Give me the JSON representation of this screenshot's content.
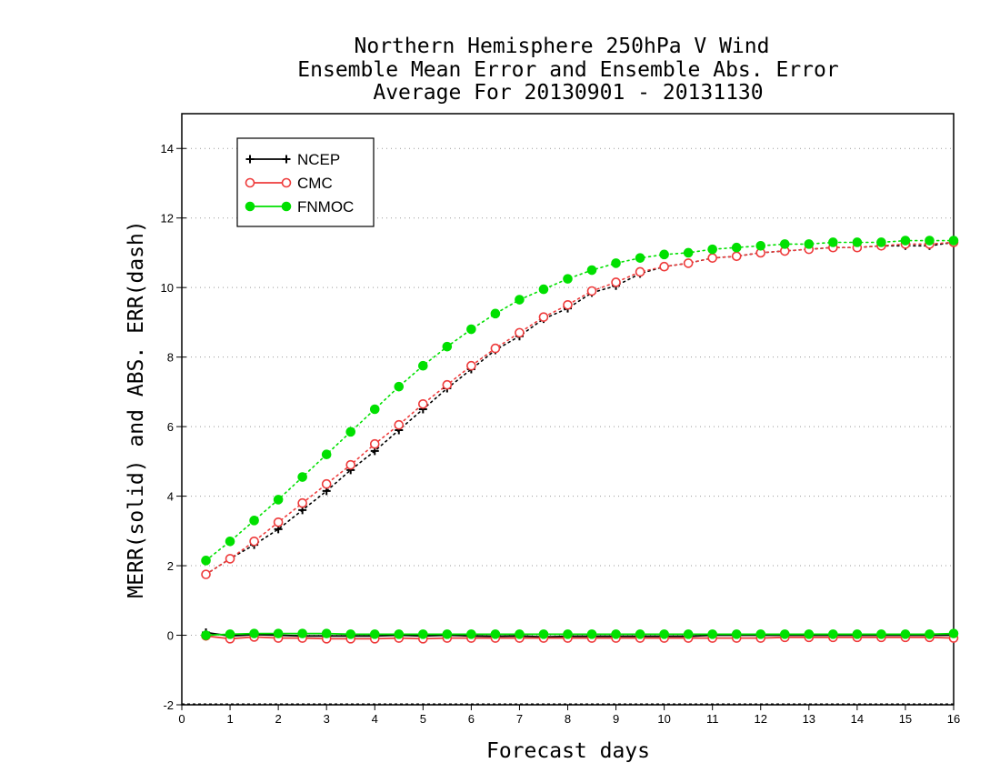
{
  "chart_data": {
    "type": "line",
    "title_lines": [
      "Northern Hemisphere 250hPa V Wind",
      "Ensemble Mean Error and Ensemble Abs. Error",
      "Average For 20130901 - 20131130"
    ],
    "xlabel": "Forecast days",
    "ylabel": "MERR(solid) and ABS. ERR(dash)",
    "xlim": [
      0,
      16
    ],
    "ylim": [
      -2,
      15
    ],
    "xticks": [
      0,
      1,
      2,
      3,
      4,
      5,
      6,
      7,
      8,
      9,
      10,
      11,
      12,
      13,
      14,
      15,
      16
    ],
    "yticks": [
      -2,
      0,
      2,
      4,
      6,
      8,
      10,
      12,
      14
    ],
    "grid": "horizontal-dotted",
    "legend_position": "top-left",
    "x": [
      0.5,
      1,
      1.5,
      2,
      2.5,
      3,
      3.5,
      4,
      4.5,
      5,
      5.5,
      6,
      6.5,
      7,
      7.5,
      8,
      8.5,
      9,
      9.5,
      10,
      10.5,
      11,
      11.5,
      12,
      12.5,
      13,
      13.5,
      14,
      14.5,
      15,
      15.5,
      16
    ],
    "series": [
      {
        "name": "NCEP",
        "color": "#000000",
        "marker": "plus",
        "abs_err": [
          1.75,
          2.2,
          2.6,
          3.05,
          3.6,
          4.15,
          4.75,
          5.3,
          5.9,
          6.5,
          7.1,
          7.65,
          8.2,
          8.6,
          9.1,
          9.4,
          9.85,
          10.05,
          10.4,
          10.6,
          10.7,
          10.85,
          10.9,
          11.0,
          11.05,
          11.1,
          11.15,
          11.15,
          11.2,
          11.2,
          11.2,
          11.3
        ],
        "merr": [
          0.08,
          -0.02,
          0.02,
          0.0,
          -0.02,
          -0.02,
          -0.02,
          -0.02,
          0.0,
          -0.02,
          0.0,
          -0.02,
          -0.03,
          -0.02,
          -0.05,
          -0.03,
          -0.03,
          -0.03,
          -0.03,
          -0.03,
          -0.03,
          0.0,
          0.0,
          0.0,
          0.0,
          0.0,
          0.0,
          0.0,
          0.0,
          0.0,
          0.0,
          0.0
        ]
      },
      {
        "name": "CMC",
        "color": "#ee3b3b",
        "marker": "circle-open",
        "abs_err": [
          1.75,
          2.2,
          2.7,
          3.25,
          3.8,
          4.35,
          4.9,
          5.5,
          6.05,
          6.65,
          7.2,
          7.75,
          8.25,
          8.7,
          9.15,
          9.5,
          9.9,
          10.15,
          10.45,
          10.6,
          10.7,
          10.85,
          10.9,
          11.0,
          11.05,
          11.1,
          11.15,
          11.15,
          11.2,
          11.25,
          11.25,
          11.3
        ],
        "merr": [
          -0.02,
          -0.1,
          -0.05,
          -0.08,
          -0.08,
          -0.1,
          -0.1,
          -0.1,
          -0.08,
          -0.1,
          -0.08,
          -0.08,
          -0.08,
          -0.08,
          -0.08,
          -0.08,
          -0.08,
          -0.08,
          -0.08,
          -0.08,
          -0.08,
          -0.08,
          -0.08,
          -0.08,
          -0.06,
          -0.06,
          -0.06,
          -0.06,
          -0.06,
          -0.06,
          -0.06,
          -0.08
        ]
      },
      {
        "name": "FNMOC",
        "color": "#00e000",
        "marker": "circle-filled",
        "abs_err": [
          2.15,
          2.7,
          3.3,
          3.9,
          4.55,
          5.2,
          5.85,
          6.5,
          7.15,
          7.75,
          8.3,
          8.8,
          9.25,
          9.65,
          9.95,
          10.25,
          10.5,
          10.7,
          10.85,
          10.95,
          11.0,
          11.1,
          11.15,
          11.2,
          11.25,
          11.25,
          11.3,
          11.3,
          11.3,
          11.35,
          11.35,
          11.35
        ],
        "merr": [
          0.0,
          0.03,
          0.05,
          0.05,
          0.05,
          0.05,
          0.03,
          0.03,
          0.03,
          0.03,
          0.03,
          0.03,
          0.03,
          0.03,
          0.03,
          0.03,
          0.03,
          0.03,
          0.03,
          0.03,
          0.03,
          0.03,
          0.03,
          0.03,
          0.03,
          0.03,
          0.03,
          0.03,
          0.03,
          0.03,
          0.03,
          0.05
        ]
      }
    ]
  }
}
